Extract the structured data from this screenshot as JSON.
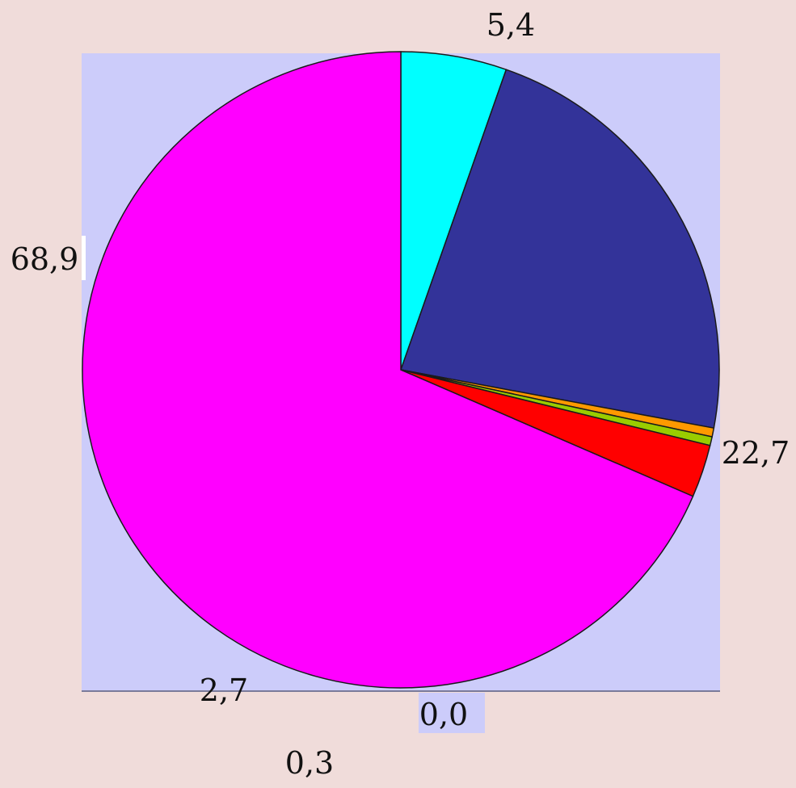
{
  "chart_data": {
    "type": "pie",
    "values": [
      5.4,
      22.7,
      0.0,
      0.3,
      2.7,
      68.9
    ],
    "labels": [
      "5,4",
      "22,7",
      "0,0",
      "0,3",
      "2,7",
      "68,9"
    ],
    "colors": [
      "#00ffff",
      "#333399",
      "#ff9900",
      "#99cc00",
      "#ff0000",
      "#ff00ff"
    ],
    "start_angle_deg": 0,
    "direction": "clockwise",
    "title": "",
    "legend": "none",
    "plot_background": "#ccccfa",
    "page_background": "#f0dcda"
  }
}
